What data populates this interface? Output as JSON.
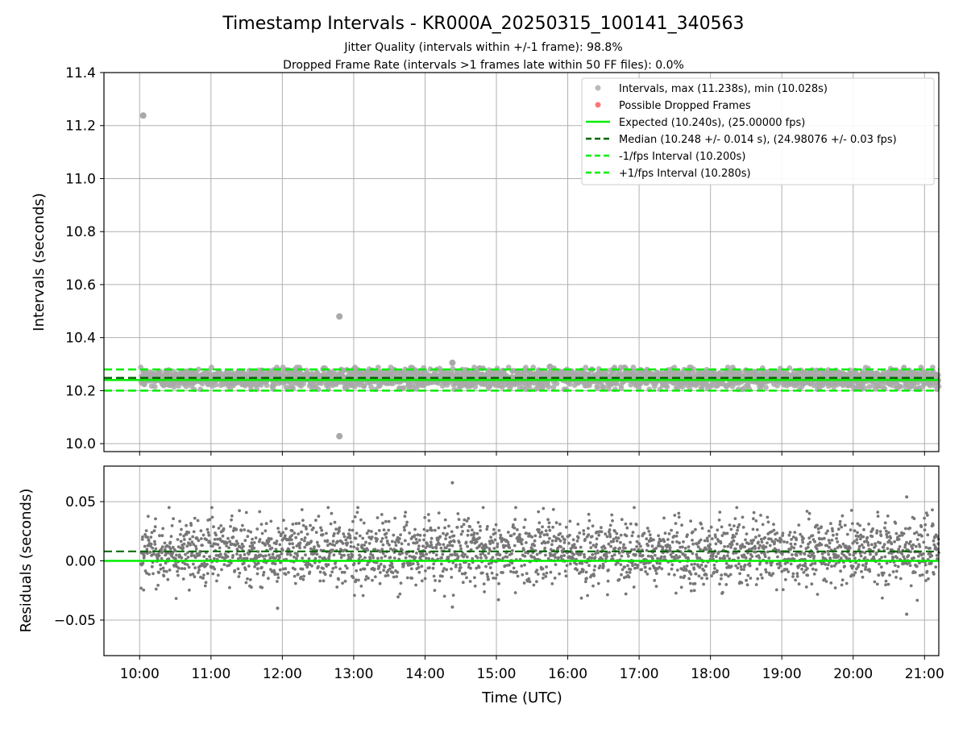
{
  "figure": {
    "title": "Timestamp Intervals - KR000A_20250315_100141_340563",
    "subtitle1": "Jitter Quality (intervals within +/-1 frame): 98.8%",
    "subtitle2": "Dropped Frame Rate (intervals >1 frames late within 50 FF files): 0.0%",
    "xlabel": "Time (UTC)"
  },
  "colors": {
    "points_top": "#a9a9a9",
    "points_bottom": "#777777",
    "expected": "#00ee00",
    "median": "#006400",
    "limits": "#00ee00",
    "dropped": "#ff5555",
    "grid": "#b0b0b0"
  },
  "chart_data": [
    {
      "type": "scatter",
      "ylabel": "Intervals (seconds)",
      "xlim": [
        "09:30",
        "21:12"
      ],
      "ylim": [
        9.97,
        11.4
      ],
      "yticks": [
        "10.0",
        "10.2",
        "10.4",
        "10.6",
        "10.8",
        "11.0",
        "11.2",
        "11.4"
      ],
      "xticks": [
        "10:00",
        "11:00",
        "12:00",
        "13:00",
        "14:00",
        "15:00",
        "16:00",
        "17:00",
        "18:00",
        "19:00",
        "20:00",
        "21:00"
      ],
      "grid": true,
      "legend_position": "top-right",
      "legend": [
        "Intervals, max (11.238s), min (10.028s)",
        "Possible Dropped Frames",
        "Expected (10.240s), (25.00000 fps)",
        "Median (10.248 +/- 0.014 s), (24.98076 +/- 0.03 fps)",
        "-1/fps Interval (10.200s)",
        "+1/fps Interval (10.280s)"
      ],
      "expected": 10.24,
      "median": 10.248,
      "lower_limit": 10.2,
      "upper_limit": 10.28,
      "outliers": [
        {
          "x": "10:03",
          "y": 11.238
        },
        {
          "x": "12:48",
          "y": 10.48
        },
        {
          "x": "12:48",
          "y": 10.028
        },
        {
          "x": "14:23",
          "y": 10.305
        },
        {
          "x": "15:45",
          "y": 10.29
        }
      ],
      "x_start": "10:01",
      "x_end": "21:12",
      "series": [
        {
          "name": "Intervals, max (11.238s), min (10.028s)",
          "center": 10.248,
          "spread": 0.018
        }
      ]
    },
    {
      "type": "scatter",
      "xlabel": "Time (UTC)",
      "ylabel": "Residuals (seconds)",
      "xlim": [
        "09:30",
        "21:12"
      ],
      "ylim": [
        -0.08,
        0.08
      ],
      "yticks": [
        "−0.05",
        "0.00",
        "0.05"
      ],
      "xticks": [
        "10:00",
        "11:00",
        "12:00",
        "13:00",
        "14:00",
        "15:00",
        "16:00",
        "17:00",
        "18:00",
        "19:00",
        "20:00",
        "21:00"
      ],
      "grid": true,
      "expected": 0.0,
      "median": 0.008,
      "outliers": [
        {
          "x": "14:23",
          "y": 0.066
        },
        {
          "x": "20:45",
          "y": 0.054
        },
        {
          "x": "11:56",
          "y": -0.04
        },
        {
          "x": "14:23",
          "y": -0.039
        },
        {
          "x": "20:45",
          "y": -0.045
        }
      ],
      "x_start": "10:01",
      "x_end": "21:12",
      "center": 0.008,
      "spread": 0.014
    }
  ]
}
